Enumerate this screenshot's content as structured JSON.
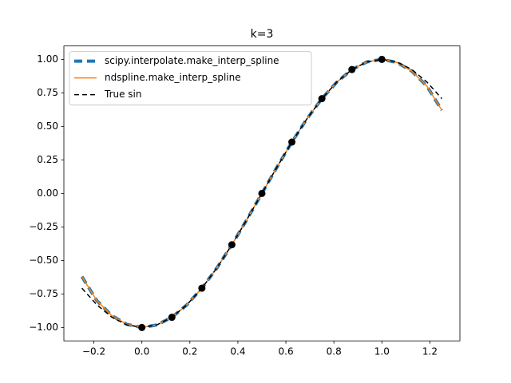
{
  "chart_data": {
    "type": "line",
    "title": "k=3",
    "x": [
      -0.25,
      -0.1875,
      -0.125,
      -0.0625,
      0,
      0.0625,
      0.125,
      0.1875,
      0.25,
      0.3125,
      0.375,
      0.4375,
      0.5,
      0.5625,
      0.625,
      0.6875,
      0.75,
      0.8125,
      0.875,
      0.9375,
      1,
      1.0625,
      1.125,
      1.1875,
      1.25
    ],
    "series": [
      {
        "name": "scipy.interpolate.make_interp_spline",
        "color": "#1f77b4",
        "style": "thick-dash",
        "values": [
          -0.62,
          -0.8,
          -0.912,
          -0.977,
          -1,
          -0.981,
          -0.924,
          -0.831,
          -0.707,
          -0.556,
          -0.383,
          -0.195,
          0,
          0.195,
          0.383,
          0.556,
          0.707,
          0.831,
          0.924,
          0.981,
          1,
          0.977,
          0.912,
          0.8,
          0.62
        ]
      },
      {
        "name": "ndspline.make_interp_spline",
        "color": "#ff7f0e",
        "style": "solid",
        "values": [
          -0.62,
          -0.8,
          -0.912,
          -0.977,
          -1,
          -0.981,
          -0.924,
          -0.831,
          -0.707,
          -0.556,
          -0.383,
          -0.195,
          0,
          0.195,
          0.383,
          0.556,
          0.707,
          0.831,
          0.924,
          0.981,
          1,
          0.977,
          0.912,
          0.8,
          0.62
        ]
      },
      {
        "name": "True sin",
        "color": "#000000",
        "style": "dash",
        "values": [
          -0.707,
          -0.831,
          -0.924,
          -0.981,
          -1,
          -0.981,
          -0.924,
          -0.831,
          -0.707,
          -0.556,
          -0.383,
          -0.195,
          0,
          0.195,
          0.383,
          0.556,
          0.707,
          0.831,
          0.924,
          0.981,
          1,
          0.981,
          0.924,
          0.831,
          0.707
        ]
      }
    ],
    "points": {
      "color": "#000000",
      "x": [
        0,
        0.125,
        0.25,
        0.375,
        0.5,
        0.625,
        0.75,
        0.875,
        1
      ],
      "values": [
        -1,
        -0.924,
        -0.707,
        -0.383,
        0,
        0.383,
        0.707,
        0.924,
        1
      ]
    },
    "xlim": [
      -0.325,
      1.325
    ],
    "ylim": [
      -1.1,
      1.1
    ],
    "xticks": [
      {
        "value": -0.2,
        "label": "−0.2"
      },
      {
        "value": 0,
        "label": "0.0"
      },
      0.2,
      0.4,
      0.6,
      0.8,
      {
        "value": 1,
        "label": "1.0"
      },
      1.2
    ],
    "yticks": [
      {
        "value": -1,
        "label": "−1.00"
      },
      {
        "value": -0.75,
        "label": "−0.75"
      },
      {
        "value": -0.5,
        "label": "−0.50"
      },
      {
        "value": -0.25,
        "label": "−0.25"
      },
      {
        "value": 0,
        "label": "0.00"
      },
      {
        "value": 0.25,
        "label": "0.25"
      },
      {
        "value": 0.5,
        "label": "0.50"
      },
      {
        "value": 0.75,
        "label": "0.75"
      },
      {
        "value": 1,
        "label": "1.00"
      }
    ],
    "legend": "upper left"
  }
}
